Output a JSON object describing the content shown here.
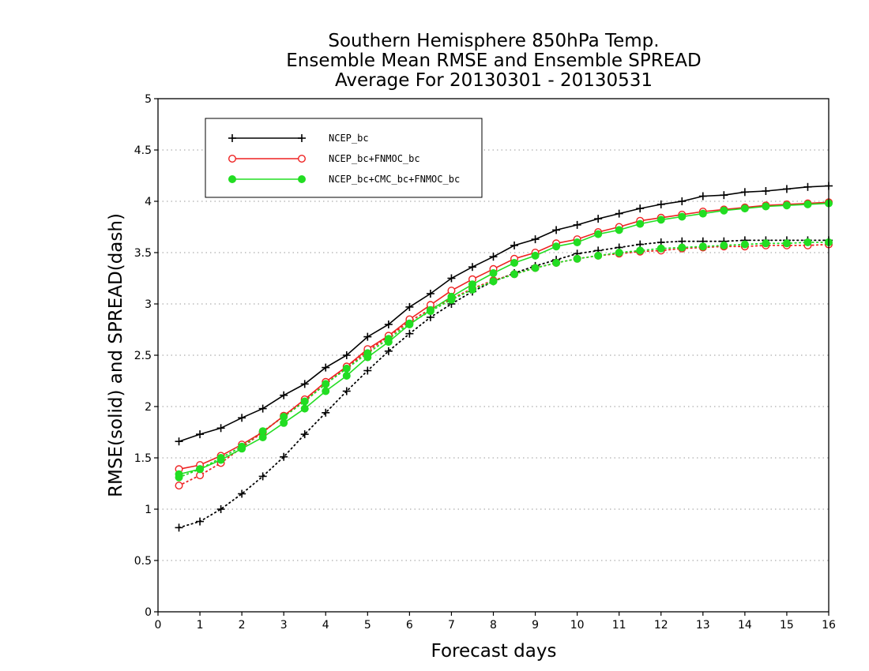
{
  "chart_data": {
    "type": "line",
    "title_lines": [
      "Southern Hemisphere 850hPa Temp.",
      "Ensemble Mean RMSE and Ensemble SPREAD",
      "Average For 20130301 - 20130531"
    ],
    "xlabel": "Forecast days",
    "ylabel": "RMSE(solid) and SPREAD(dash)",
    "xlim": [
      0,
      16
    ],
    "ylim": [
      0,
      5
    ],
    "x_ticks": [
      0,
      1,
      2,
      3,
      4,
      5,
      6,
      7,
      8,
      9,
      10,
      11,
      12,
      13,
      14,
      15,
      16
    ],
    "y_ticks": [
      0,
      0.5,
      1,
      1.5,
      2,
      2.5,
      3,
      3.5,
      4,
      4.5,
      5
    ],
    "y_tick_labels": [
      "0",
      "0.5",
      "1",
      "1.5",
      "2",
      "2.5",
      "3",
      "3.5",
      "4",
      "4.5",
      "5"
    ],
    "grid": "horizontal dotted",
    "legend_position": "top-left",
    "x": [
      0.5,
      1,
      1.5,
      2,
      2.5,
      3,
      3.5,
      4,
      4.5,
      5,
      5.5,
      6,
      6.5,
      7,
      7.5,
      8,
      8.5,
      9,
      9.5,
      10,
      10.5,
      11,
      11.5,
      12,
      12.5,
      13,
      13.5,
      14,
      14.5,
      15,
      15.5,
      16
    ],
    "series": [
      {
        "name": "NCEP_bc",
        "color": "#000000",
        "marker": "plus",
        "rmse": [
          1.66,
          1.73,
          1.79,
          1.89,
          1.98,
          2.11,
          2.22,
          2.38,
          2.5,
          2.68,
          2.8,
          2.97,
          3.1,
          3.25,
          3.36,
          3.46,
          3.57,
          3.63,
          3.72,
          3.77,
          3.83,
          3.88,
          3.93,
          3.97,
          4.0,
          4.05,
          4.06,
          4.09,
          4.1,
          4.12,
          4.14,
          4.15
        ],
        "spread": [
          0.82,
          0.88,
          1.0,
          1.15,
          1.32,
          1.51,
          1.73,
          1.94,
          2.15,
          2.35,
          2.54,
          2.71,
          2.87,
          3.0,
          3.12,
          3.22,
          3.3,
          3.37,
          3.43,
          3.49,
          3.52,
          3.55,
          3.58,
          3.6,
          3.61,
          3.61,
          3.61,
          3.62,
          3.62,
          3.62,
          3.62,
          3.62
        ]
      },
      {
        "name": "NCEP_bc+FNMOC_bc",
        "color": "#ee2222",
        "marker": "open-circle",
        "rmse": [
          1.39,
          1.43,
          1.52,
          1.63,
          1.75,
          1.91,
          2.07,
          2.24,
          2.39,
          2.56,
          2.69,
          2.85,
          2.99,
          3.13,
          3.24,
          3.34,
          3.44,
          3.5,
          3.59,
          3.63,
          3.7,
          3.75,
          3.81,
          3.84,
          3.87,
          3.9,
          3.92,
          3.94,
          3.96,
          3.97,
          3.98,
          3.99
        ],
        "spread": [
          1.23,
          1.33,
          1.45,
          1.6,
          1.75,
          1.91,
          2.06,
          2.22,
          2.38,
          2.54,
          2.68,
          2.83,
          2.95,
          3.05,
          3.15,
          3.23,
          3.29,
          3.35,
          3.4,
          3.44,
          3.47,
          3.49,
          3.51,
          3.52,
          3.54,
          3.55,
          3.56,
          3.56,
          3.57,
          3.57,
          3.57,
          3.58
        ]
      },
      {
        "name": "NCEP_bc+CMC_bc+FNMOC_bc",
        "color": "#22dd22",
        "marker": "filled-circle",
        "rmse": [
          1.34,
          1.39,
          1.48,
          1.59,
          1.7,
          1.84,
          1.98,
          2.15,
          2.3,
          2.48,
          2.63,
          2.8,
          2.94,
          3.07,
          3.19,
          3.3,
          3.4,
          3.47,
          3.56,
          3.6,
          3.68,
          3.72,
          3.78,
          3.82,
          3.85,
          3.88,
          3.91,
          3.93,
          3.95,
          3.96,
          3.97,
          3.98
        ],
        "spread": [
          1.31,
          1.39,
          1.5,
          1.61,
          1.76,
          1.9,
          2.05,
          2.22,
          2.37,
          2.52,
          2.66,
          2.81,
          2.93,
          3.04,
          3.14,
          3.22,
          3.29,
          3.35,
          3.4,
          3.44,
          3.47,
          3.5,
          3.52,
          3.54,
          3.55,
          3.56,
          3.57,
          3.58,
          3.59,
          3.59,
          3.6,
          3.6
        ]
      }
    ]
  }
}
